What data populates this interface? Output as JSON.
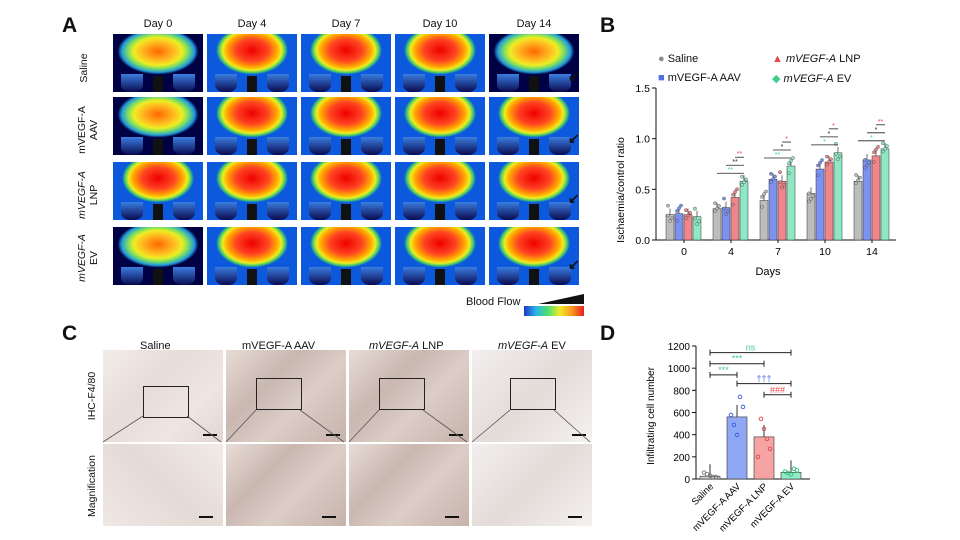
{
  "panelA": {
    "letter": "A",
    "days": [
      "Day 0",
      "Day 4",
      "Day 7",
      "Day 10",
      "Day 14"
    ],
    "rows": [
      {
        "l1": "Saline",
        "l2": "",
        "italic": false
      },
      {
        "l1": "mVEGF-A",
        "l2": "AAV",
        "italic": false
      },
      {
        "l1": "mVEGF-A",
        "l2": "LNP",
        "italic": true
      },
      {
        "l1": "mVEGF-A",
        "l2": "EV",
        "italic": true
      }
    ],
    "legend": "Blood Flow"
  },
  "panelB": {
    "letter": "B",
    "legend": [
      {
        "prefix": "Saline",
        "suffix": "",
        "italic": false,
        "color": "#8c8c8c",
        "marker": "●"
      },
      {
        "prefix": "mVEGF-A",
        "suffix": " LNP",
        "italic": true,
        "color": "#e8454e",
        "marker": "▲"
      },
      {
        "prefix": "mVEGF-A AAV",
        "suffix": "",
        "italic": false,
        "color": "#4f6fe8",
        "marker": "■"
      },
      {
        "prefix": "mVEGF-A",
        "suffix": " EV",
        "italic": true,
        "color": "#3ecf8e",
        "marker": "◆"
      }
    ],
    "sig": [
      "**",
      "**",
      "**",
      "**",
      "**",
      "*",
      "*",
      "*",
      "*",
      "*"
    ]
  },
  "panelC": {
    "letter": "C",
    "cols": [
      {
        "a": "Saline",
        "b": "",
        "italic": false
      },
      {
        "a": "mVEGF-A AAV",
        "b": "",
        "italic": false
      },
      {
        "a": "mVEGF-A",
        "b": " LNP",
        "italic": true
      },
      {
        "a": "mVEGF-A",
        "b": " EV",
        "italic": true
      }
    ],
    "row1": "IHC-F4/80",
    "row2": "Magnification"
  },
  "panelD": {
    "letter": "D",
    "sig": {
      "ns": "ns",
      "s1": "***",
      "s2": "***",
      "s3": "†††",
      "s4": "###"
    }
  },
  "chart_data": [
    {
      "type": "bar",
      "categories": [
        "0",
        "4",
        "7",
        "10",
        "14"
      ],
      "xlabel": "Days",
      "ylabel": "Ischaemia/control ratio",
      "ylim": [
        0,
        1.5
      ],
      "yticks": [
        "0.0",
        "0.5",
        "1.0",
        "1.5"
      ],
      "series": [
        {
          "name": "Saline",
          "color": "#bdbdbd",
          "values": [
            0.25,
            0.31,
            0.39,
            0.46,
            0.58
          ]
        },
        {
          "name": "mVEGF-A AAV",
          "color": "#7d92f0",
          "values": [
            0.26,
            0.32,
            0.6,
            0.7,
            0.79
          ]
        },
        {
          "name": "mVEGF-A LNP",
          "color": "#f0868c",
          "values": [
            0.25,
            0.42,
            0.58,
            0.77,
            0.83
          ]
        },
        {
          "name": "mVEGF-A EV",
          "color": "#8ee8c3",
          "values": [
            0.23,
            0.58,
            0.73,
            0.86,
            0.9
          ]
        }
      ]
    },
    {
      "type": "bar",
      "categories": [
        "Saline",
        "mVEGF-A AAV",
        "mVEGF-A LNP",
        "mVEGF-A EV"
      ],
      "ylabel": "Infiltrating cell number",
      "ylim": [
        0,
        1200
      ],
      "yticks": [
        "0",
        "200",
        "400",
        "600",
        "800",
        "1000",
        "1200"
      ],
      "series": [
        {
          "values": [
            25,
            560,
            380,
            60
          ]
        }
      ],
      "colors": [
        "#d0d0d0",
        "#8ea8f4",
        "#f6a3a3",
        "#92ebc6"
      ]
    }
  ]
}
